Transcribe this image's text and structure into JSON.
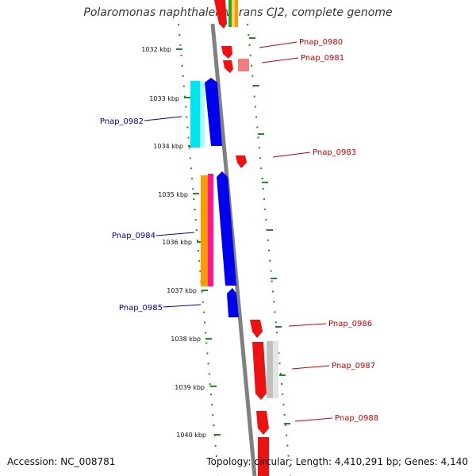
{
  "title": "Polaromonas naphthalenivorans CJ2, complete genome",
  "footer": {
    "accession": "Accession: NC_008781",
    "summary": "Topology: circular; Length: 4,410,291 bp; Genes: 4,140"
  },
  "ticks": [
    "1032 kbp",
    "1033 kbp",
    "1034 kbp",
    "1035 kbp",
    "1036 kbp",
    "1037 kbp",
    "1038 kbp",
    "1039 kbp",
    "1040 kbp"
  ],
  "genes_left": [
    {
      "label": "Pnap_0982"
    },
    {
      "label": "Pnap_0984"
    },
    {
      "label": "Pnap_0985"
    }
  ],
  "genes_right": [
    {
      "label": "Pnap_0980"
    },
    {
      "label": "Pnap_0981"
    },
    {
      "label": "Pnap_0983"
    },
    {
      "label": "Pnap_0986"
    },
    {
      "label": "Pnap_0987"
    },
    {
      "label": "Pnap_0988"
    }
  ],
  "colors": {
    "label_left": "#0000aa",
    "label_right": "#cc0000",
    "axis": "#808080",
    "tick": "#228822"
  }
}
